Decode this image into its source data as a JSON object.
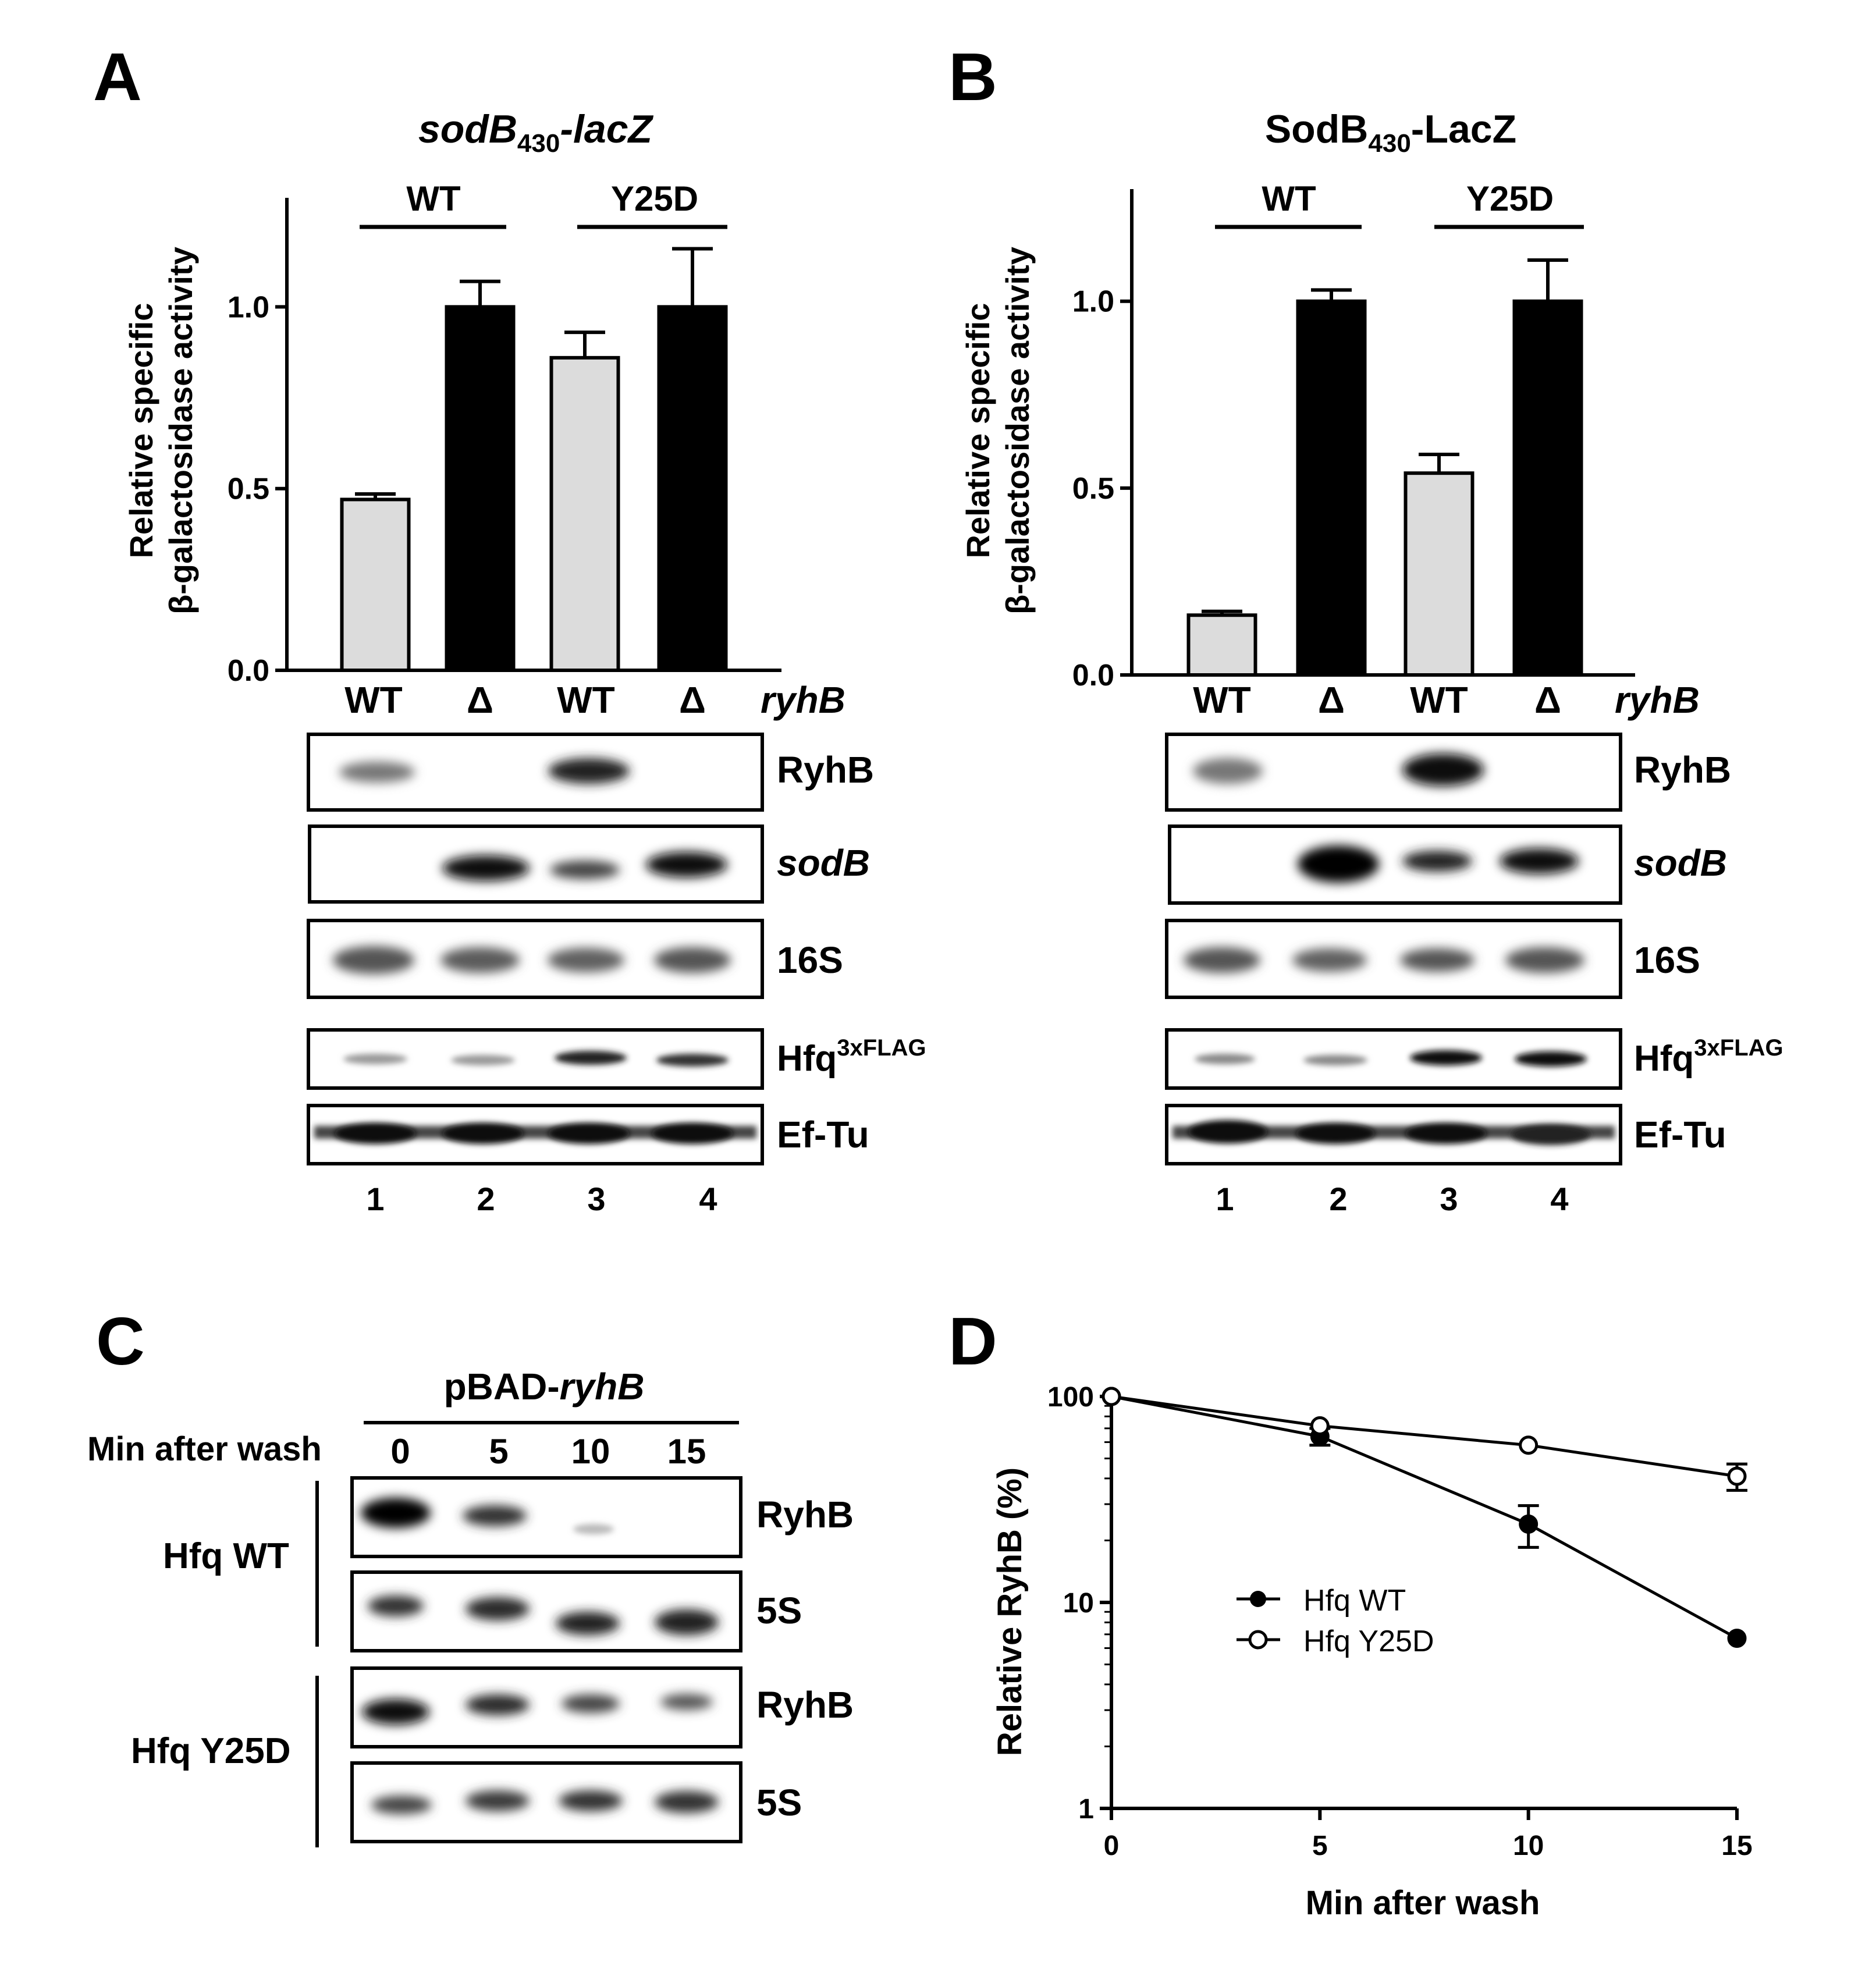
{
  "panel_letters": {
    "a": "A",
    "b": "B",
    "c": "C",
    "d": "D"
  },
  "colors": {
    "wt_bar": "#dcdcdc",
    "delta_bar": "#000000",
    "axis": "#000000"
  },
  "panel_a": {
    "title_main": "sodB",
    "title_sub": "430",
    "title_tail": "-lacZ",
    "ylabel_line1": "Relative specific",
    "ylabel_line2": "β-galactosidase activity",
    "group_labels": [
      "WT",
      "Y25D"
    ],
    "lane_labels": [
      "WT",
      "Δ",
      "WT",
      "Δ"
    ],
    "lane_axis_label": "ryhB",
    "blot_labels": {
      "ryhb": "RyhB",
      "sodb": "sodB",
      "s16": "16S",
      "hfq": "Hfq",
      "hfq_sup": "3xFLAG",
      "eftu": "Ef-Tu"
    },
    "lane_numbers": [
      "1",
      "2",
      "3",
      "4"
    ]
  },
  "panel_b": {
    "title_main": "SodB",
    "title_sub": "430",
    "title_tail": "-LacZ",
    "ylabel_line1": "Relative specific",
    "ylabel_line2": "β-galactosidase activity",
    "group_labels": [
      "WT",
      "Y25D"
    ],
    "lane_labels": [
      "WT",
      "Δ",
      "WT",
      "Δ"
    ],
    "lane_axis_label": "ryhB",
    "blot_labels": {
      "ryhb": "RyhB",
      "sodb": "sodB",
      "s16": "16S",
      "hfq": "Hfq",
      "hfq_sup": "3xFLAG",
      "eftu": "Ef-Tu"
    },
    "lane_numbers": [
      "1",
      "2",
      "3",
      "4"
    ]
  },
  "panel_c": {
    "title_main": "pBAD-",
    "title_tail": "ryhB",
    "time_label": "Min after wash",
    "time_points": [
      "0",
      "5",
      "10",
      "15"
    ],
    "strain_labels": [
      "Hfq WT",
      "Hfq Y25D"
    ],
    "blot_labels": [
      "RyhB",
      "5S",
      "RyhB",
      "5S"
    ]
  },
  "panel_d": {
    "ylabel": "Relative RyhB (%)",
    "xlabel": "Min after wash",
    "legend": [
      "Hfq WT",
      "Hfq Y25D"
    ],
    "xticks": [
      "0",
      "5",
      "10",
      "15"
    ],
    "yticks": [
      "1",
      "10",
      "100"
    ]
  },
  "chart_data": [
    {
      "type": "bar",
      "panel": "A",
      "title": "sodB430-lacZ",
      "xlabel": "ryhB",
      "ylabel": "Relative specific β-galactosidase activity",
      "categories": [
        "WT",
        "Δ",
        "WT",
        "Δ"
      ],
      "groups": [
        "WT",
        "Y25D"
      ],
      "values": [
        0.47,
        1.0,
        0.86,
        1.0
      ],
      "errors": [
        0.015,
        0.07,
        0.07,
        0.16
      ],
      "ylim": [
        0,
        1.3
      ],
      "yticks": [
        "0.0",
        "0.5",
        "1.0"
      ]
    },
    {
      "type": "bar",
      "panel": "B",
      "title": "SodB430-LacZ",
      "xlabel": "ryhB",
      "ylabel": "Relative specific β-galactosidase activity",
      "categories": [
        "WT",
        "Δ",
        "WT",
        "Δ"
      ],
      "groups": [
        "WT",
        "Y25D"
      ],
      "values": [
        0.16,
        1.0,
        0.54,
        1.0
      ],
      "errors": [
        0.01,
        0.03,
        0.05,
        0.11
      ],
      "ylim": [
        0,
        1.3
      ],
      "yticks": [
        "0.0",
        "0.5",
        "1.0"
      ]
    },
    {
      "type": "line",
      "panel": "D",
      "xlabel": "Min after wash",
      "ylabel": "Relative RyhB (%)",
      "yscale": "log",
      "ylim": [
        1,
        100
      ],
      "xlim": [
        0,
        15
      ],
      "x": [
        0,
        5,
        10,
        15
      ],
      "series": [
        {
          "name": "Hfq WT",
          "marker": "filled-circle",
          "values": [
            100,
            64,
            24,
            6.7
          ],
          "errors": [
            0,
            6,
            5.5,
            0
          ]
        },
        {
          "name": "Hfq Y25D",
          "marker": "open-circle",
          "values": [
            100,
            72,
            58,
            41
          ],
          "errors": [
            0,
            0,
            0,
            6
          ]
        }
      ],
      "legend_position": "center-left"
    }
  ]
}
